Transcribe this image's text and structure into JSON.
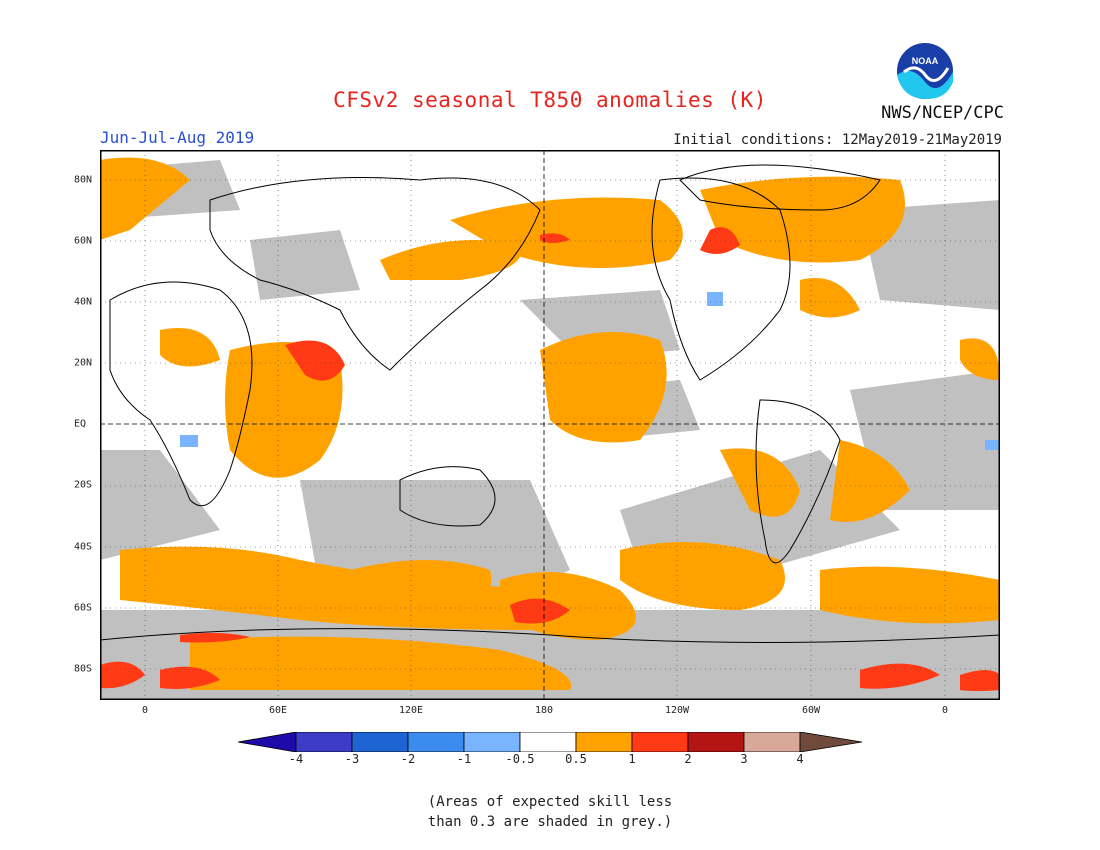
{
  "header": {
    "title": "CFSv2 seasonal T850 anomalies (K)",
    "organization": "NWS/NCEP/CPC",
    "logo_text": "NOAA",
    "season": "Jun-Jul-Aug 2019",
    "initial_conditions": "Initial conditions: 12May2019-21May2019"
  },
  "map": {
    "longitude_labels": [
      "0",
      "60E",
      "120E",
      "180",
      "120W",
      "60W",
      "0"
    ],
    "latitude_labels": [
      "80N",
      "60N",
      "40N",
      "20N",
      "EQ",
      "20S",
      "40S",
      "60S",
      "80S"
    ],
    "colors": {
      "grey_low_skill": "#c0c0c0",
      "warm_0_5_1": "#ffa200",
      "warm_1_2": "#ff3a14",
      "warm_2_3": "#c81a1a",
      "cool_m1_m0_5": "#78b4ff",
      "land_outline": "#000000"
    }
  },
  "colorbar": {
    "labels": [
      "-4",
      "-3",
      "-2",
      "-1",
      "-0.5",
      "0.5",
      "1",
      "2",
      "3",
      "4"
    ],
    "colors": [
      "#1e0aa8",
      "#3c3cc8",
      "#1e64d2",
      "#3c8cf0",
      "#78b4ff",
      "#ffffff",
      "#ffa200",
      "#ff3a14",
      "#b41414",
      "#d8a898",
      "#704a3c"
    ]
  },
  "footnote": {
    "line1": "(Areas of expected skill less",
    "line2": "than 0.3 are shaded in grey.)"
  }
}
